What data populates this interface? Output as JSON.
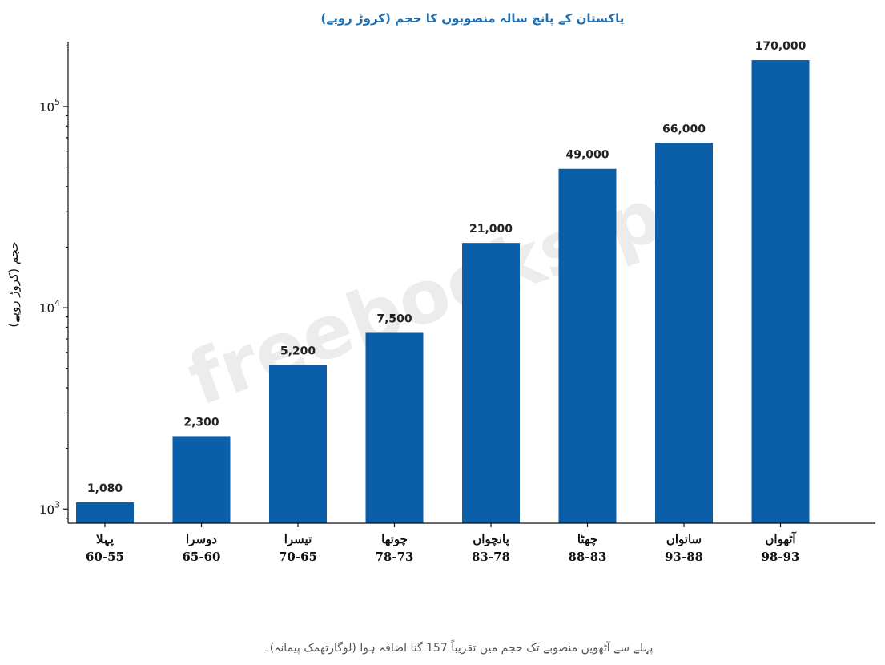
{
  "chart_data": {
    "type": "bar",
    "title": "پاکستان کے پانچ سالہ منصوبوں کا حجم (کروڑ روپے)",
    "ylabel": "حجم (کروڑ روپے)",
    "xlabel": "",
    "yscale": "log",
    "ylim": [
      850,
      210000
    ],
    "yticks": [
      {
        "value": 1000,
        "base": "10",
        "exp": "3"
      },
      {
        "value": 10000,
        "base": "10",
        "exp": "4"
      },
      {
        "value": 100000,
        "base": "10",
        "exp": "5"
      }
    ],
    "categories": [
      {
        "name": "پہلا",
        "years": "60-55"
      },
      {
        "name": "دوسرا",
        "years": "65-60"
      },
      {
        "name": "تیسرا",
        "years": "70-65"
      },
      {
        "name": "چوتھا",
        "years": "78-73"
      },
      {
        "name": "پانچواں",
        "years": "83-78"
      },
      {
        "name": "چھٹا",
        "years": "88-83"
      },
      {
        "name": "ساتواں",
        "years": "93-88"
      },
      {
        "name": "آٹھواں",
        "years": "98-93"
      }
    ],
    "values": [
      1080,
      2300,
      5200,
      7500,
      21000,
      49000,
      66000,
      170000
    ],
    "value_labels": [
      "1,080",
      "2,300",
      "5,200",
      "7,500",
      "21,000",
      "49,000",
      "66,000",
      "170,000"
    ],
    "bar_color": "#0b5fa8",
    "title_color": "#1f6fb2",
    "grid": false,
    "watermark": "freebooks.pk",
    "footnote": "پہلے سے آٹھویں منصوبے تک حجم میں تقریباً 157 گنا اضافہ ہوا (لوگارتھمک پیمانہ)۔"
  }
}
